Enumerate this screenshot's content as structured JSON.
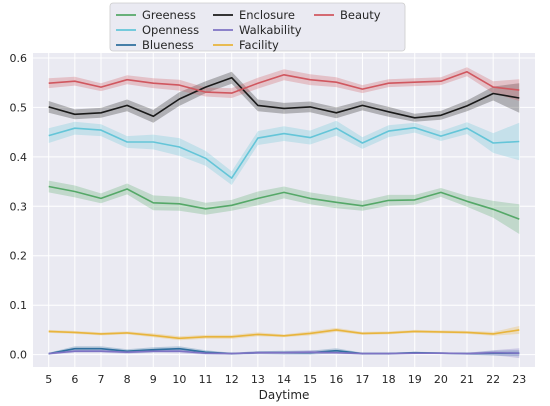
{
  "chart_data": {
    "type": "line",
    "xlabel": "Daytime",
    "ylabel": "",
    "x": [
      5,
      6,
      7,
      8,
      9,
      10,
      11,
      12,
      13,
      14,
      15,
      16,
      17,
      18,
      19,
      20,
      21,
      22,
      23
    ],
    "xlim": [
      4.4,
      23.6
    ],
    "ylim": [
      -0.025,
      0.61
    ],
    "yticks": [
      0.0,
      0.1,
      0.2,
      0.3,
      0.4,
      0.5,
      0.6
    ],
    "ytick_labels": [
      "0.0",
      "0.1",
      "0.2",
      "0.3",
      "0.4",
      "0.5",
      "0.6"
    ],
    "grid": true,
    "background": "#EAEAF2",
    "legend_position": "top-center",
    "series": [
      {
        "name": "Greeness",
        "color": "#55A868",
        "values": [
          0.34,
          0.33,
          0.316,
          0.335,
          0.307,
          0.305,
          0.295,
          0.302,
          0.316,
          0.328,
          0.316,
          0.308,
          0.301,
          0.312,
          0.313,
          0.328,
          0.31,
          0.294,
          0.274
        ],
        "band": [
          0.012,
          0.012,
          0.01,
          0.011,
          0.015,
          0.014,
          0.012,
          0.011,
          0.014,
          0.012,
          0.012,
          0.012,
          0.01,
          0.011,
          0.01,
          0.009,
          0.011,
          0.017,
          0.03
        ]
      },
      {
        "name": "Openness",
        "color": "#64C5D8",
        "values": [
          0.443,
          0.458,
          0.454,
          0.43,
          0.43,
          0.42,
          0.397,
          0.357,
          0.438,
          0.447,
          0.439,
          0.458,
          0.428,
          0.452,
          0.459,
          0.442,
          0.458,
          0.428,
          0.431
        ],
        "band": [
          0.015,
          0.013,
          0.012,
          0.012,
          0.015,
          0.018,
          0.015,
          0.014,
          0.014,
          0.015,
          0.014,
          0.015,
          0.012,
          0.012,
          0.01,
          0.01,
          0.012,
          0.02,
          0.038
        ]
      },
      {
        "name": "Blueness",
        "color": "#2E6F9E",
        "values": [
          0.002,
          0.012,
          0.012,
          0.007,
          0.01,
          0.012,
          0.005,
          0.002,
          0.004,
          0.004,
          0.004,
          0.008,
          0.002,
          0.002,
          0.004,
          0.003,
          0.002,
          0.003,
          0.003
        ],
        "band": [
          0.002,
          0.005,
          0.005,
          0.004,
          0.005,
          0.005,
          0.004,
          0.002,
          0.003,
          0.004,
          0.004,
          0.005,
          0.002,
          0.002,
          0.002,
          0.002,
          0.002,
          0.005,
          0.006
        ]
      },
      {
        "name": "Enclosure",
        "color": "#1A1A1A",
        "values": [
          0.501,
          0.486,
          0.489,
          0.504,
          0.482,
          0.517,
          0.541,
          0.56,
          0.504,
          0.498,
          0.501,
          0.489,
          0.504,
          0.491,
          0.479,
          0.484,
          0.503,
          0.528,
          0.519
        ],
        "band": [
          0.012,
          0.01,
          0.01,
          0.012,
          0.013,
          0.014,
          0.012,
          0.012,
          0.012,
          0.011,
          0.011,
          0.011,
          0.01,
          0.01,
          0.008,
          0.009,
          0.011,
          0.014,
          0.03
        ]
      },
      {
        "name": "Walkability",
        "color": "#7E73C4",
        "values": [
          0.002,
          0.007,
          0.007,
          0.005,
          0.007,
          0.007,
          0.003,
          0.002,
          0.004,
          0.004,
          0.005,
          0.004,
          0.002,
          0.002,
          0.003,
          0.003,
          0.002,
          0.004,
          0.003
        ],
        "band": [
          0.002,
          0.003,
          0.003,
          0.003,
          0.003,
          0.004,
          0.003,
          0.002,
          0.003,
          0.003,
          0.004,
          0.003,
          0.002,
          0.002,
          0.002,
          0.002,
          0.002,
          0.005,
          0.01
        ]
      },
      {
        "name": "Facility",
        "color": "#E8B43C",
        "values": [
          0.047,
          0.045,
          0.042,
          0.044,
          0.039,
          0.033,
          0.036,
          0.036,
          0.041,
          0.038,
          0.043,
          0.05,
          0.043,
          0.044,
          0.047,
          0.046,
          0.045,
          0.042,
          0.05
        ],
        "band": [
          0.003,
          0.003,
          0.003,
          0.003,
          0.004,
          0.004,
          0.004,
          0.004,
          0.004,
          0.003,
          0.004,
          0.004,
          0.003,
          0.003,
          0.003,
          0.003,
          0.003,
          0.004,
          0.008
        ]
      },
      {
        "name": "Beauty",
        "color": "#D0575F",
        "values": [
          0.549,
          0.553,
          0.541,
          0.556,
          0.549,
          0.545,
          0.531,
          0.529,
          0.549,
          0.566,
          0.556,
          0.551,
          0.537,
          0.549,
          0.551,
          0.553,
          0.572,
          0.541,
          0.535
        ],
        "band": [
          0.01,
          0.009,
          0.008,
          0.009,
          0.01,
          0.011,
          0.009,
          0.01,
          0.011,
          0.011,
          0.011,
          0.01,
          0.008,
          0.008,
          0.008,
          0.008,
          0.009,
          0.012,
          0.022
        ]
      }
    ]
  }
}
